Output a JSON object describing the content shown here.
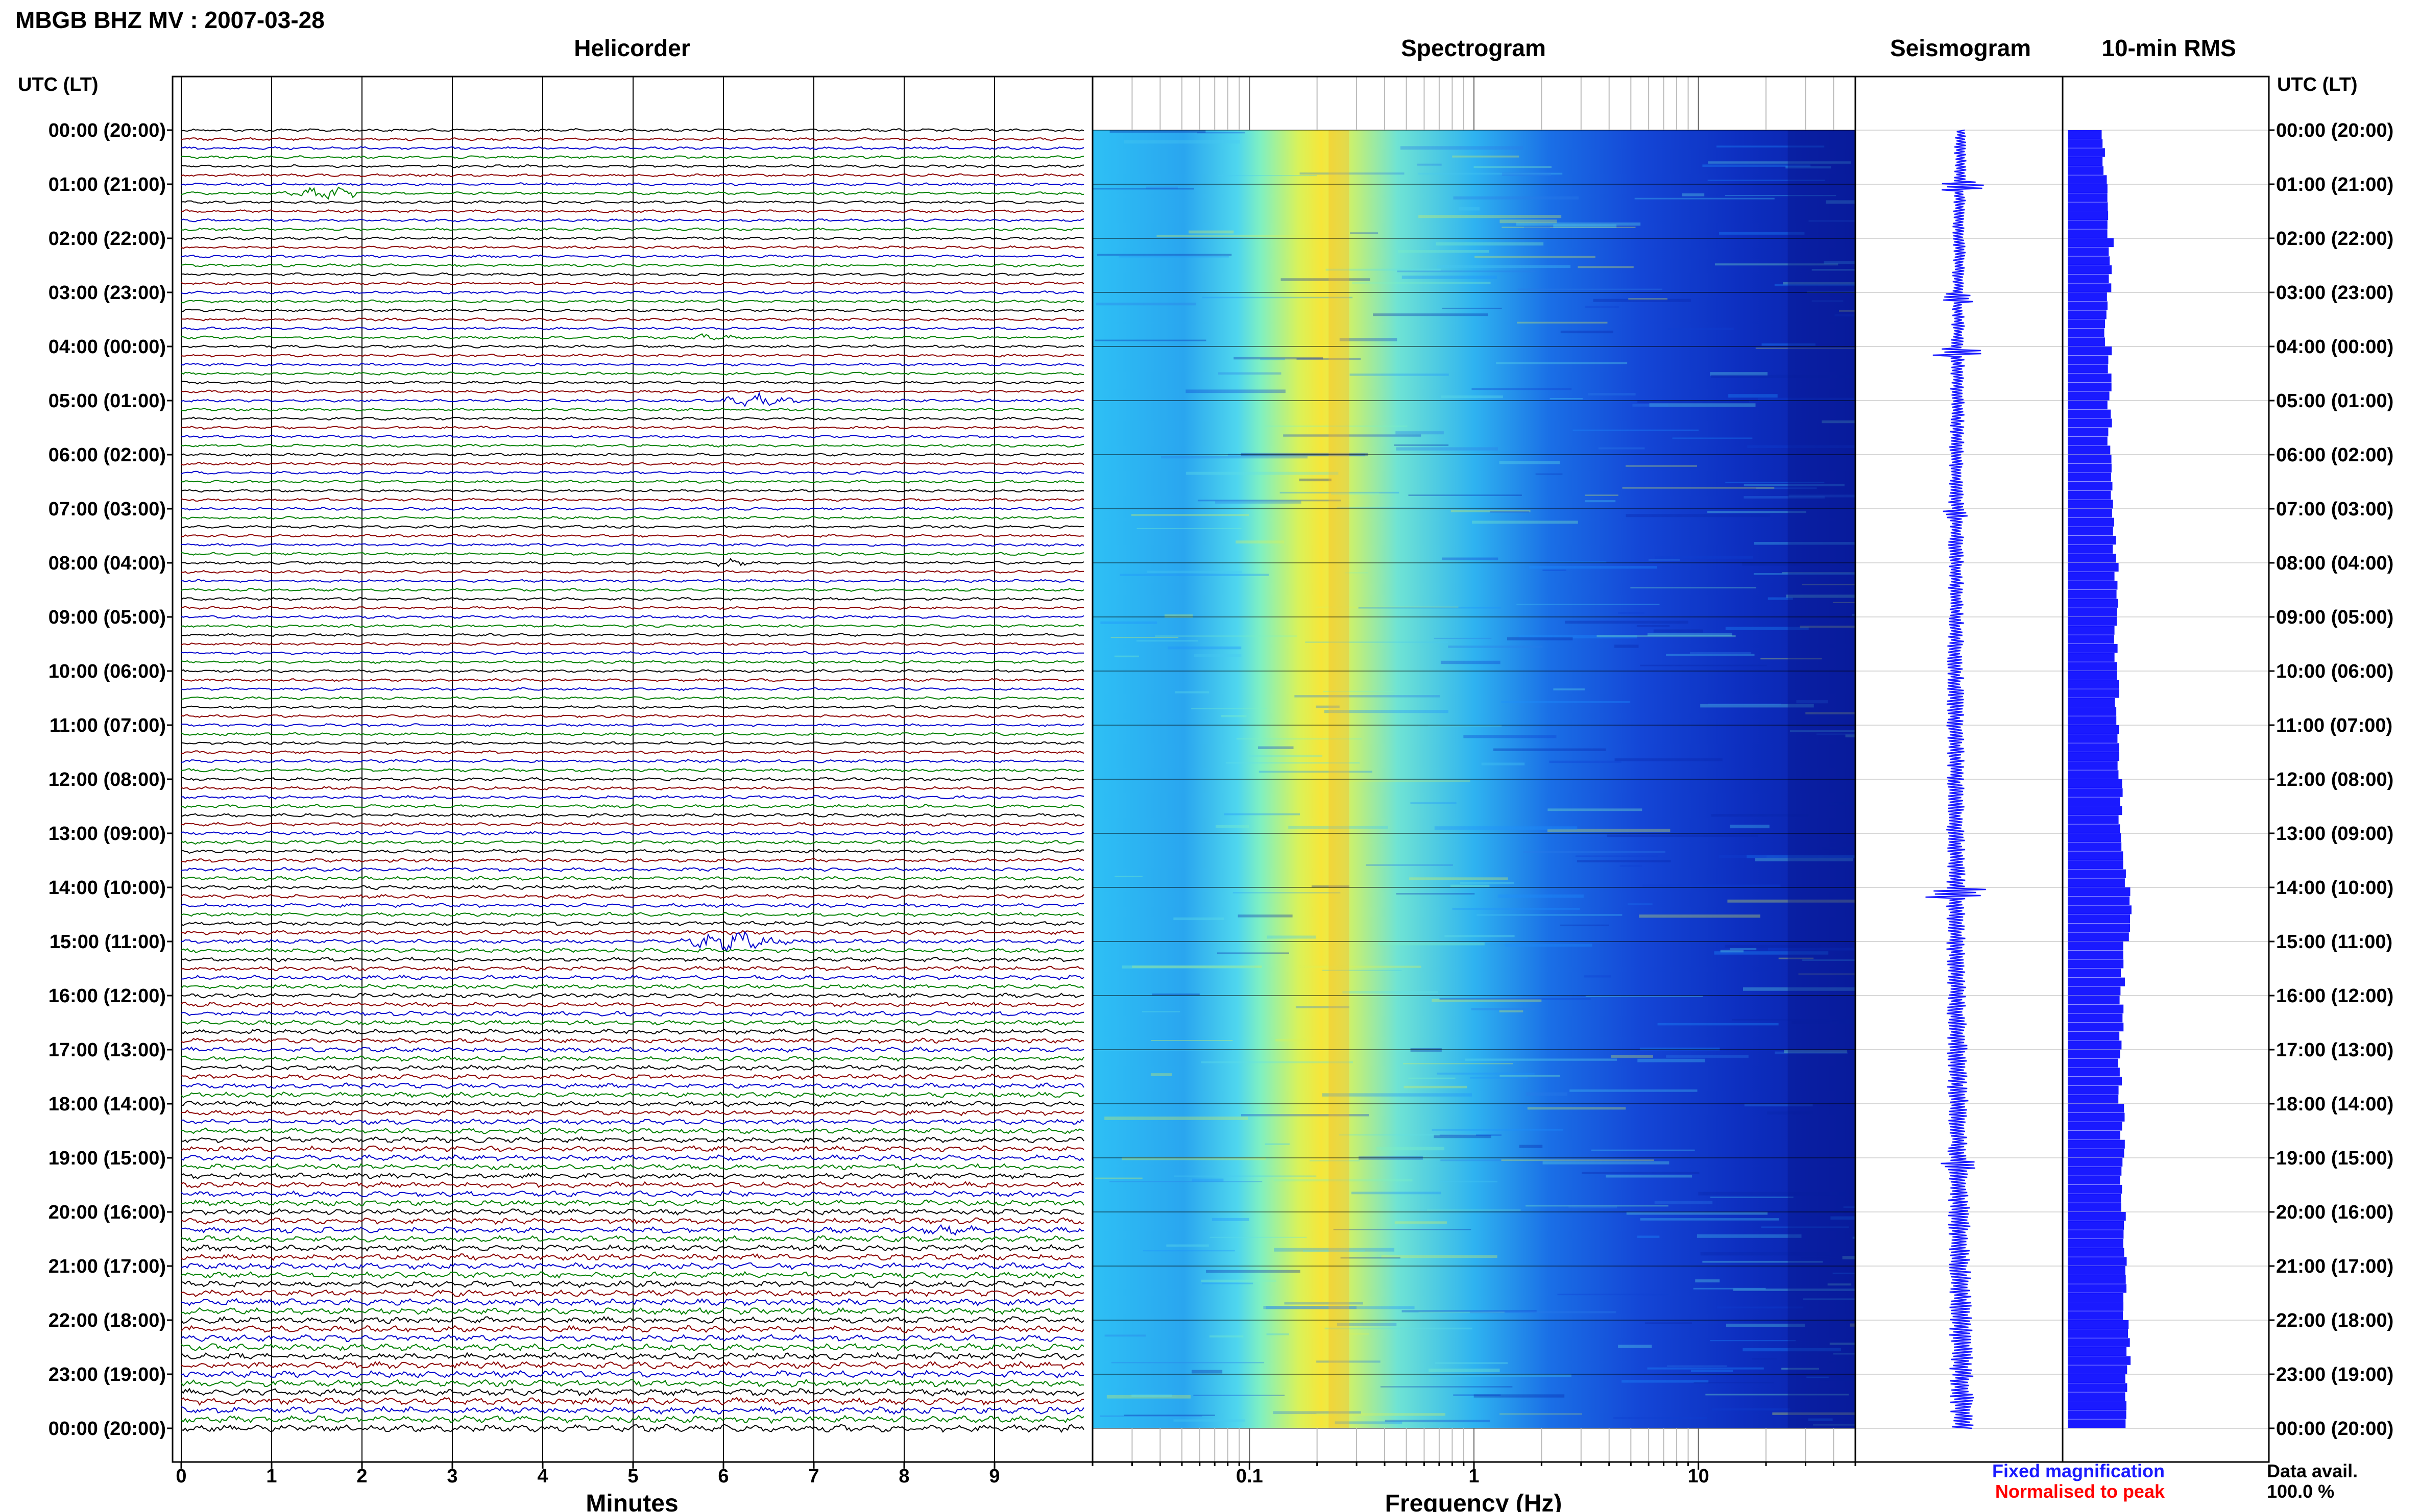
{
  "title": "MBGB BHZ MV : 2007-03-28",
  "panels": {
    "helicorder": "Helicorder",
    "spectrogram": "Spectrogram",
    "seismogram": "Seismogram",
    "rms": "10-min RMS"
  },
  "time_axis_label": "UTC (LT)",
  "time_labels": [
    "00:00 (20:00)",
    "01:00 (21:00)",
    "02:00 (22:00)",
    "03:00 (23:00)",
    "04:00 (00:00)",
    "05:00 (01:00)",
    "06:00 (02:00)",
    "07:00 (03:00)",
    "08:00 (04:00)",
    "09:00 (05:00)",
    "10:00 (06:00)",
    "11:00 (07:00)",
    "12:00 (08:00)",
    "13:00 (09:00)",
    "14:00 (10:00)",
    "15:00 (11:00)",
    "16:00 (12:00)",
    "17:00 (13:00)",
    "18:00 (14:00)",
    "19:00 (15:00)",
    "20:00 (16:00)",
    "21:00 (17:00)",
    "22:00 (18:00)",
    "23:00 (19:00)",
    "00:00 (20:00)"
  ],
  "legend": {
    "fixed": "Fixed magnification",
    "normalised": "Normalised to peak",
    "fixed_color": "#1a1aff",
    "normalised_color": "#ff0000"
  },
  "availability": {
    "label": "Data avail.",
    "value": "100.0 %"
  },
  "chart_data": [
    {
      "type": "line",
      "panel": "Helicorder",
      "xlabel": "Minutes",
      "x_ticks": [
        "0",
        "1",
        "2",
        "3",
        "4",
        "5",
        "6",
        "7",
        "8",
        "9"
      ],
      "xlim": [
        0,
        10
      ],
      "rows_per_hour": 6,
      "hours": 24,
      "trace_colors": [
        "#000000",
        "#8b0000",
        "#0000cd",
        "#008000"
      ],
      "events": [
        {
          "hour_label": "01:00 (21:00)",
          "minute": 1.6,
          "size": 2
        },
        {
          "hour_label": "03:00 (23:00)",
          "minute": 5.9,
          "size": 1
        },
        {
          "hour_label": "04:00 (00:00)",
          "minute": 6.4,
          "size": 2
        },
        {
          "hour_label": "07:00 (03:00)",
          "minute": 6.1,
          "size": 1
        },
        {
          "hour_label": "14:00 (10:00)",
          "minute": 6.1,
          "size": 3
        },
        {
          "hour_label": "19:00 (15:00)",
          "minute": 8.5,
          "size": 1
        }
      ]
    },
    {
      "type": "heatmap",
      "panel": "Spectrogram",
      "xlabel": "Frequency (Hz)",
      "x_scale": "log",
      "xlim": [
        0.02,
        50
      ],
      "x_ticks": [
        "0.1",
        "1",
        "10"
      ],
      "peak_frequency_hz": 0.25
    },
    {
      "type": "line",
      "panel": "Seismogram",
      "x_ticks": []
    },
    {
      "type": "bar",
      "panel": "10-min RMS",
      "orientation": "horizontal",
      "x_ticks": [],
      "values_per_hour": [
        0.42,
        0.46,
        0.5,
        0.45,
        0.49,
        0.48,
        0.51,
        0.53,
        0.56,
        0.55,
        0.57,
        0.58,
        0.61,
        0.64,
        0.71,
        0.63,
        0.62,
        0.6,
        0.63,
        0.62,
        0.65,
        0.66,
        0.7,
        0.68
      ]
    }
  ]
}
